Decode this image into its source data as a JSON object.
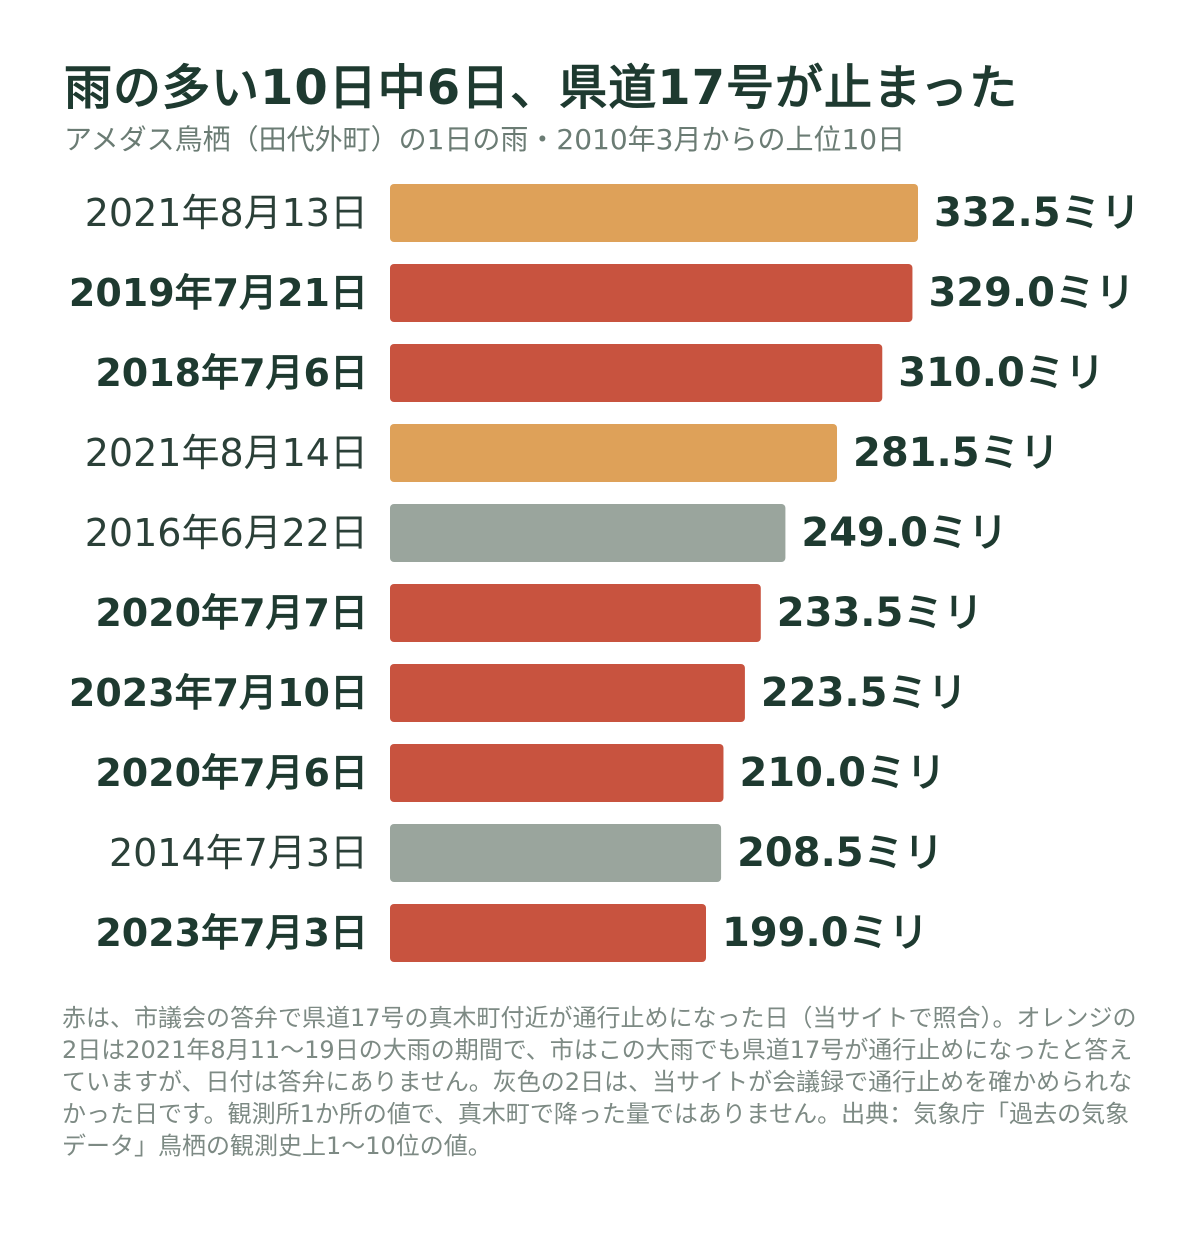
{
  "title": "雨の多い10日中6日、県道17号が止まった",
  "subtitle": "アメダス鳥栖（田代外町）の1日の雨・2010年3月からの上位10日",
  "note": "赤は、市議会の答弁で県道17号の真木町付近が通行止めになった日（当サイトで照合）。オレンジの2日は2021年8月11〜19日の大雨の期間で、市はこの大雨でも県道17号が通行止めになったと答えていますが、日付は答弁にありません。灰色の2日は、当サイトが会議録で通行止めを確かめられなかった日です。観測所1か所の値で、真木町で降った量ではありません。出典：気象庁「過去の気象データ」鳥栖の観測史上1〜10位の値。",
  "colors": {
    "red": "#c8533f",
    "orange": "#dea159",
    "gray": "#9aa59d"
  },
  "chart_data": {
    "type": "bar",
    "orientation": "horizontal",
    "unit": "ミリ",
    "xlim": [
      0,
      332.5
    ],
    "bars": [
      {
        "label": "2021年8月13日",
        "value": 332.5,
        "value_label": "332.5ミリ",
        "category": "orange",
        "bold": false
      },
      {
        "label": "2019年7月21日",
        "value": 329.0,
        "value_label": "329.0ミリ",
        "category": "red",
        "bold": true
      },
      {
        "label": "2018年7月6日",
        "value": 310.0,
        "value_label": "310.0ミリ",
        "category": "red",
        "bold": true
      },
      {
        "label": "2021年8月14日",
        "value": 281.5,
        "value_label": "281.5ミリ",
        "category": "orange",
        "bold": false
      },
      {
        "label": "2016年6月22日",
        "value": 249.0,
        "value_label": "249.0ミリ",
        "category": "gray",
        "bold": false
      },
      {
        "label": "2020年7月7日",
        "value": 233.5,
        "value_label": "233.5ミリ",
        "category": "red",
        "bold": true
      },
      {
        "label": "2023年7月10日",
        "value": 223.5,
        "value_label": "223.5ミリ",
        "category": "red",
        "bold": true
      },
      {
        "label": "2020年7月6日",
        "value": 210.0,
        "value_label": "210.0ミリ",
        "category": "red",
        "bold": true
      },
      {
        "label": "2014年7月3日",
        "value": 208.5,
        "value_label": "208.5ミリ",
        "category": "gray",
        "bold": false
      },
      {
        "label": "2023年7月3日",
        "value": 199.0,
        "value_label": "199.0ミリ",
        "category": "red",
        "bold": true
      }
    ]
  }
}
